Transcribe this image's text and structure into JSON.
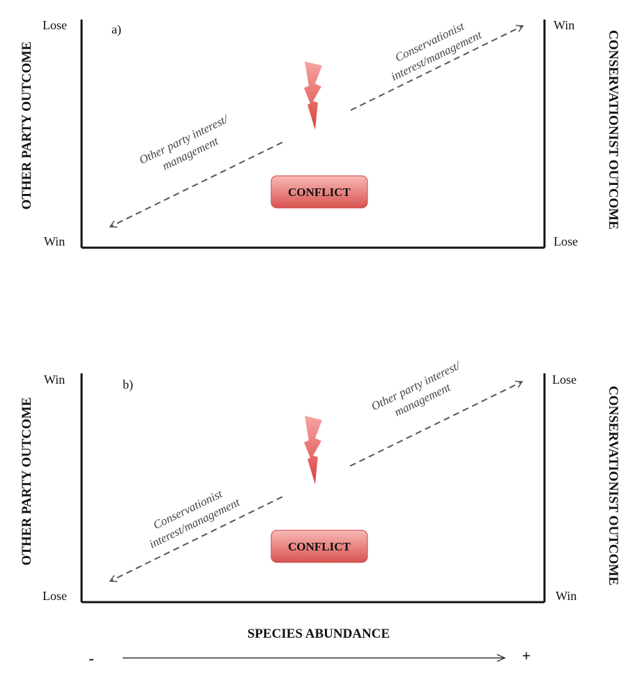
{
  "panel_a": {
    "label": "a)",
    "left_axis_title": "OTHER PARTY OUTCOME",
    "right_axis_title": "CONSERVATIONIST OUTCOME",
    "left_top": "Lose",
    "left_bottom": "Win",
    "right_top": "Win",
    "right_bottom": "Lose",
    "upper_arrow_lines": [
      "Conservationist",
      "interest/management"
    ],
    "lower_arrow_lines": [
      "Other party interest/",
      "management"
    ],
    "conflict_label": "CONFLICT"
  },
  "panel_b": {
    "label": "b)",
    "left_axis_title": "OTHER PARTY OUTCOME",
    "right_axis_title": "CONSERVATIONIST OUTCOME",
    "left_top": "Win",
    "left_bottom": "Lose",
    "right_top": "Lose",
    "right_bottom": "Win",
    "upper_arrow_lines": [
      "Other party interest/",
      "management"
    ],
    "lower_arrow_lines": [
      "Conservationist",
      "interest/management"
    ],
    "conflict_label": "CONFLICT"
  },
  "x_axis": {
    "title": "SPECIES ABUNDANCE",
    "minus": "-",
    "plus": "+"
  },
  "colors": {
    "conflict_box_top": "#f6a3a3",
    "conflict_box_bottom": "#d9534f",
    "bolt": "#e8716f",
    "arrow": "#555555",
    "axis": "#111111"
  }
}
